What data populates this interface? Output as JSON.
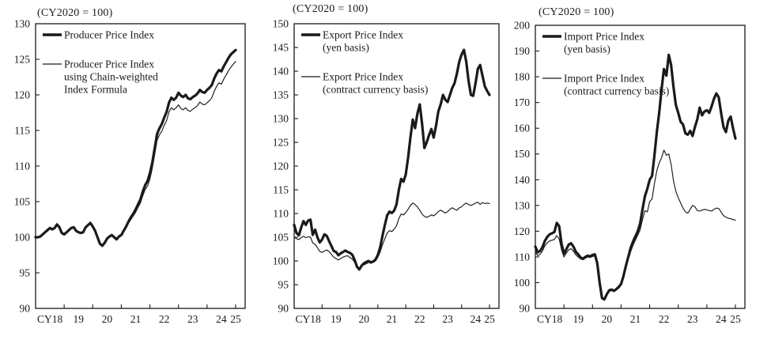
{
  "page": {
    "background": "#ffffff",
    "ink_color": "#1a1a1a"
  },
  "chart_data": [
    {
      "type": "line",
      "subtitle": "(CY2020 = 100)",
      "ylim": [
        90,
        130
      ],
      "y_step": 5,
      "x_tick_labels": [
        "CY18",
        "19",
        "20",
        "21",
        "22",
        "23",
        "24",
        "25"
      ],
      "x_unit": "month",
      "x_range": [
        "2018-01",
        "2025-01"
      ],
      "grid": false,
      "legend_position": "top-left",
      "series": [
        {
          "id": "producer-price-index",
          "name": "Producer Price Index",
          "legend_lines": [
            "Producer Price Index"
          ],
          "style": "thick",
          "values": [
            100.0,
            100.0,
            100.1,
            100.4,
            100.7,
            101.0,
            101.3,
            101.1,
            101.3,
            101.8,
            101.4,
            100.6,
            100.4,
            100.7,
            101.0,
            101.3,
            101.4,
            100.9,
            100.7,
            100.6,
            100.7,
            101.4,
            101.7,
            102.0,
            101.5,
            100.9,
            100.0,
            99.1,
            98.8,
            99.2,
            99.8,
            100.1,
            100.3,
            100.0,
            99.7,
            100.1,
            100.3,
            100.9,
            101.5,
            102.2,
            102.8,
            103.3,
            103.9,
            104.6,
            105.3,
            106.4,
            107.3,
            107.9,
            109.0,
            110.5,
            112.5,
            114.5,
            115.3,
            115.9,
            116.8,
            117.6,
            118.9,
            119.6,
            119.3,
            119.6,
            120.3,
            119.9,
            119.7,
            120.0,
            119.5,
            119.4,
            119.7,
            119.9,
            120.2,
            120.7,
            120.4,
            120.3,
            120.7,
            121.0,
            121.4,
            122.3,
            123.0,
            123.5,
            123.3,
            124.0,
            124.6,
            125.2,
            125.7,
            126.0,
            126.3
          ]
        },
        {
          "id": "producer-price-index-chain-weighted",
          "name": "Producer Price Index using Chain-weighted Index Formula",
          "legend_lines": [
            "Producer Price Index",
            "using Chain-weighted",
            "Index Formula"
          ],
          "style": "thin",
          "values": [
            100.0,
            100.0,
            100.1,
            100.4,
            100.7,
            101.0,
            101.3,
            101.1,
            101.3,
            101.8,
            101.4,
            100.6,
            100.4,
            100.7,
            101.0,
            101.3,
            101.4,
            100.9,
            100.7,
            100.6,
            100.7,
            101.4,
            101.7,
            102.0,
            101.5,
            100.9,
            100.0,
            99.1,
            98.8,
            99.2,
            99.8,
            100.1,
            100.3,
            100.0,
            99.7,
            100.1,
            100.2,
            100.8,
            101.3,
            102.0,
            102.5,
            103.0,
            103.5,
            104.2,
            104.8,
            105.8,
            106.7,
            107.2,
            108.2,
            109.7,
            111.6,
            113.6,
            114.4,
            114.9,
            115.7,
            116.4,
            117.6,
            118.2,
            117.9,
            118.2,
            118.6,
            118.1,
            117.9,
            118.2,
            117.8,
            117.7,
            118.0,
            118.2,
            118.5,
            119.0,
            118.7,
            118.6,
            118.9,
            119.2,
            119.6,
            120.5,
            121.2,
            121.7,
            121.5,
            122.2,
            122.8,
            123.4,
            123.9,
            124.3,
            124.7
          ]
        }
      ]
    },
    {
      "type": "line",
      "subtitle": "(CY2020 = 100)",
      "ylim": [
        90,
        150
      ],
      "y_step": 5,
      "x_tick_labels": [
        "CY18",
        "19",
        "20",
        "21",
        "22",
        "23",
        "24",
        "25"
      ],
      "x_unit": "month",
      "x_range": [
        "2018-01",
        "2025-01"
      ],
      "grid": false,
      "legend_position": "top-left",
      "series": [
        {
          "id": "export-price-index-yen",
          "name": "Export Price Index (yen basis)",
          "legend_lines": [
            "Export Price Index",
            "(yen basis)"
          ],
          "style": "thick",
          "values": [
            107.6,
            105.9,
            105.4,
            107.0,
            108.4,
            107.6,
            108.5,
            108.7,
            105.5,
            106.6,
            105.0,
            103.9,
            104.5,
            105.6,
            105.3,
            104.2,
            103.2,
            102.1,
            101.9,
            101.2,
            101.6,
            101.9,
            102.2,
            101.9,
            101.7,
            101.3,
            100.2,
            98.8,
            98.2,
            99.0,
            99.5,
            99.8,
            100.0,
            99.7,
            99.9,
            100.3,
            101.3,
            102.9,
            105.3,
            107.6,
            109.6,
            110.4,
            110.1,
            110.6,
            111.9,
            114.9,
            117.3,
            116.7,
            118.2,
            121.8,
            126.0,
            129.8,
            128.0,
            131.0,
            133.0,
            129.0,
            123.8,
            125.0,
            126.5,
            127.8,
            126.0,
            128.5,
            131.5,
            133.0,
            135.0,
            134.0,
            133.5,
            135.0,
            136.5,
            137.5,
            139.5,
            142.0,
            143.5,
            144.5,
            142.0,
            138.0,
            135.0,
            134.8,
            137.5,
            140.5,
            141.3,
            139.0,
            136.8,
            135.8,
            135.0
          ]
        },
        {
          "id": "export-price-index-contract-currency",
          "name": "Export Price Index (contract currency basis)",
          "legend_lines": [
            "Export Price Index",
            "(contract currency basis)"
          ],
          "style": "thin",
          "values": [
            105.0,
            104.7,
            104.5,
            104.9,
            105.2,
            104.9,
            105.1,
            105.0,
            103.8,
            103.5,
            102.8,
            102.0,
            101.8,
            102.1,
            102.3,
            102.0,
            101.4,
            100.8,
            100.5,
            100.2,
            100.5,
            100.8,
            101.0,
            101.1,
            100.7,
            100.4,
            99.7,
            98.8,
            98.5,
            98.9,
            99.2,
            99.4,
            99.7,
            99.5,
            99.7,
            100.0,
            100.8,
            101.9,
            103.4,
            104.7,
            105.9,
            106.4,
            106.2,
            106.7,
            107.4,
            108.9,
            109.9,
            109.7,
            110.2,
            110.9,
            111.7,
            112.2,
            111.9,
            111.4,
            110.7,
            109.9,
            109.4,
            109.2,
            109.4,
            109.7,
            109.5,
            109.9,
            110.4,
            110.7,
            110.4,
            110.1,
            110.4,
            110.9,
            111.2,
            110.9,
            110.7,
            111.2,
            111.4,
            111.9,
            112.2,
            111.9,
            111.7,
            111.9,
            112.2,
            112.4,
            111.9,
            112.3,
            112.1,
            112.2,
            112.1
          ]
        }
      ]
    },
    {
      "type": "line",
      "subtitle": "(CY2020 = 100)",
      "ylim": [
        90,
        200
      ],
      "y_step": 10,
      "x_tick_labels": [
        "CY18",
        "19",
        "20",
        "21",
        "22",
        "23",
        "24",
        "25"
      ],
      "x_unit": "month",
      "x_range": [
        "2018-01",
        "2025-01"
      ],
      "grid": false,
      "legend_position": "top-left",
      "series": [
        {
          "id": "import-price-index-yen",
          "name": "Import Price Index (yen basis)",
          "legend_lines": [
            "Import Price Index",
            "(yen basis)"
          ],
          "style": "thick",
          "values": [
            114.0,
            111.8,
            112.3,
            113.8,
            116.2,
            117.8,
            118.8,
            119.2,
            119.7,
            123.2,
            122.0,
            115.2,
            111.2,
            113.0,
            114.8,
            115.3,
            114.0,
            112.0,
            111.0,
            109.8,
            109.3,
            110.0,
            110.5,
            110.2,
            110.8,
            111.0,
            107.5,
            100.0,
            94.0,
            93.5,
            95.5,
            97.0,
            97.3,
            96.8,
            97.5,
            98.3,
            99.5,
            102.5,
            106.5,
            110.0,
            113.5,
            116.0,
            118.0,
            120.0,
            123.0,
            128.5,
            133.5,
            136.5,
            140.0,
            141.5,
            149.5,
            158.5,
            166.0,
            175.0,
            183.0,
            180.5,
            188.5,
            184.5,
            176.0,
            169.0,
            166.0,
            162.5,
            161.5,
            158.0,
            157.5,
            159.0,
            157.0,
            160.5,
            163.5,
            168.0,
            165.0,
            166.5,
            167.0,
            166.0,
            168.5,
            171.5,
            173.5,
            172.0,
            166.0,
            160.5,
            158.5,
            163.0,
            164.5,
            160.0,
            156.0
          ]
        },
        {
          "id": "import-price-index-contract-currency",
          "name": "Import Price Index (contract currency basis)",
          "legend_lines": [
            "Import Price Index",
            "(contract currency basis)"
          ],
          "style": "thin",
          "values": [
            112.0,
            110.5,
            111.0,
            112.3,
            114.3,
            115.5,
            116.2,
            116.5,
            116.8,
            118.3,
            117.0,
            112.8,
            110.0,
            111.5,
            112.8,
            113.2,
            112.2,
            110.8,
            110.0,
            109.2,
            108.9,
            109.5,
            110.0,
            109.8,
            110.2,
            110.4,
            107.2,
            100.0,
            94.2,
            93.8,
            95.2,
            96.6,
            96.9,
            96.5,
            97.1,
            97.9,
            99.3,
            102.0,
            105.8,
            109.0,
            112.0,
            114.5,
            116.5,
            118.5,
            120.5,
            124.5,
            128.0,
            127.5,
            131.5,
            132.5,
            138.5,
            143.5,
            146.5,
            148.5,
            151.5,
            149.5,
            150.0,
            146.0,
            139.5,
            135.5,
            133.0,
            131.0,
            129.0,
            127.5,
            127.0,
            128.5,
            130.0,
            129.5,
            128.0,
            127.8,
            128.2,
            128.5,
            128.3,
            128.0,
            127.8,
            128.5,
            129.0,
            128.8,
            127.5,
            126.0,
            125.5,
            125.0,
            124.8,
            124.5,
            124.3
          ]
        }
      ]
    }
  ]
}
